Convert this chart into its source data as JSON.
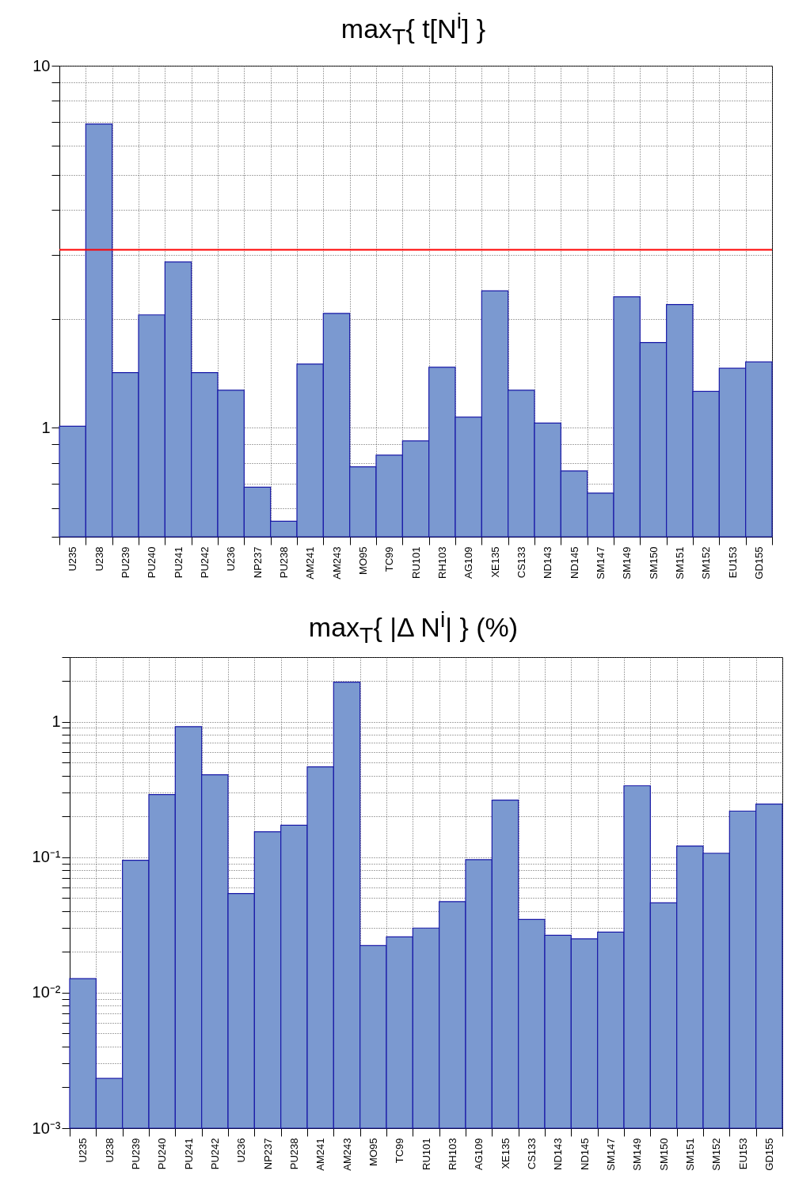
{
  "chart_data": [
    {
      "type": "bar",
      "title": "max$_{T}${ t[N$^{i}$] }",
      "categories": [
        "U235",
        "U238",
        "PU239",
        "PU240",
        "PU241",
        "PU242",
        "U236",
        "NP237",
        "PU238",
        "AM241",
        "AM243",
        "MO95",
        "TC99",
        "RU101",
        "RH103",
        "AG109",
        "XE135",
        "CS133",
        "ND143",
        "ND145",
        "SM147",
        "SM149",
        "SM150",
        "SM151",
        "SM152",
        "EU153",
        "GD155"
      ],
      "values": [
        1.01,
        6.9,
        1.42,
        2.05,
        2.87,
        1.42,
        1.27,
        0.685,
        0.552,
        1.5,
        2.07,
        0.78,
        0.84,
        0.92,
        1.47,
        1.07,
        2.39,
        1.27,
        1.03,
        0.76,
        0.66,
        2.3,
        1.72,
        2.19,
        1.26,
        1.46,
        1.52
      ],
      "color": "#7b99d0",
      "log": "y",
      "ylim": [
        0.5,
        10
      ],
      "yticks": [
        {
          "value": 0.5,
          "label": null
        },
        {
          "value": 0.6,
          "label": null
        },
        {
          "value": 0.7,
          "label": null
        },
        {
          "value": 0.8,
          "label": null
        },
        {
          "value": 0.9,
          "label": null
        },
        {
          "value": 1,
          "label": "1"
        },
        {
          "value": 2,
          "label": null
        },
        {
          "value": 3,
          "label": null
        },
        {
          "value": 4,
          "label": null
        },
        {
          "value": 5,
          "label": null
        },
        {
          "value": 6,
          "label": null
        },
        {
          "value": 7,
          "label": null
        },
        {
          "value": 8,
          "label": null
        },
        {
          "value": 9,
          "label": null
        },
        {
          "value": 10,
          "label": "10"
        }
      ],
      "ref_lines": [
        {
          "axis": "y",
          "value": 3.1,
          "color": "#ff0000"
        }
      ],
      "grid": true
    },
    {
      "type": "bar",
      "title": "max$_{T}${ |Δ N$^{i}$| } (%)",
      "categories": [
        "U235",
        "U238",
        "PU239",
        "PU240",
        "PU241",
        "PU242",
        "U236",
        "NP237",
        "PU238",
        "AM241",
        "AM243",
        "MO95",
        "TC99",
        "RU101",
        "RH103",
        "AG109",
        "XE135",
        "CS133",
        "ND143",
        "ND145",
        "SM147",
        "SM149",
        "SM150",
        "SM151",
        "SM152",
        "EU153",
        "GD155"
      ],
      "values": [
        0.0127,
        0.00233,
        0.095,
        0.29,
        0.92,
        0.406,
        0.054,
        0.154,
        0.172,
        0.465,
        1.96,
        0.0223,
        0.0258,
        0.03,
        0.047,
        0.096,
        0.264,
        0.0347,
        0.0265,
        0.025,
        0.028,
        0.337,
        0.046,
        0.121,
        0.107,
        0.219,
        0.247
      ],
      "color": "#7b99d0",
      "log": "y",
      "ylim": [
        0.001,
        3
      ],
      "yticks": [
        {
          "value": 0.001,
          "label": "10⁻³"
        },
        {
          "value": 0.002,
          "label": null
        },
        {
          "value": 0.003,
          "label": null
        },
        {
          "value": 0.004,
          "label": null
        },
        {
          "value": 0.005,
          "label": null
        },
        {
          "value": 0.006,
          "label": null
        },
        {
          "value": 0.007,
          "label": null
        },
        {
          "value": 0.008,
          "label": null
        },
        {
          "value": 0.009,
          "label": null
        },
        {
          "value": 0.01,
          "label": "10⁻²"
        },
        {
          "value": 0.02,
          "label": null
        },
        {
          "value": 0.03,
          "label": null
        },
        {
          "value": 0.04,
          "label": null
        },
        {
          "value": 0.05,
          "label": null
        },
        {
          "value": 0.06,
          "label": null
        },
        {
          "value": 0.07,
          "label": null
        },
        {
          "value": 0.08,
          "label": null
        },
        {
          "value": 0.09,
          "label": null
        },
        {
          "value": 0.1,
          "label": "10⁻¹"
        },
        {
          "value": 0.2,
          "label": null
        },
        {
          "value": 0.3,
          "label": null
        },
        {
          "value": 0.4,
          "label": null
        },
        {
          "value": 0.5,
          "label": null
        },
        {
          "value": 0.6,
          "label": null
        },
        {
          "value": 0.7,
          "label": null
        },
        {
          "value": 0.8,
          "label": null
        },
        {
          "value": 0.9,
          "label": null
        },
        {
          "value": 1,
          "label": "1"
        },
        {
          "value": 2,
          "label": null
        },
        {
          "value": 3,
          "label": null
        }
      ],
      "grid": true
    }
  ]
}
